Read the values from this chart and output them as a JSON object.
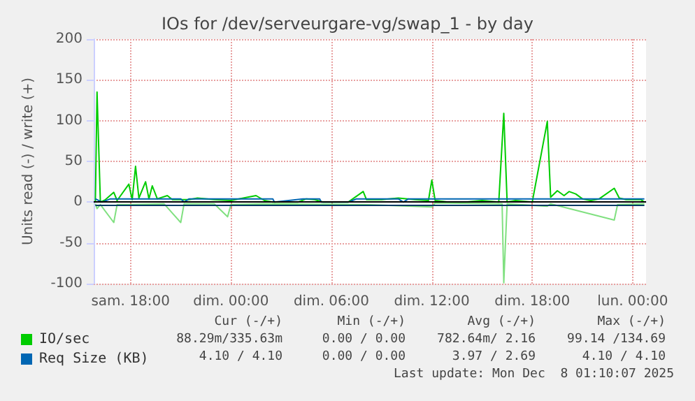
{
  "chart_data": {
    "type": "line",
    "title": "IOs for /dev/serveurgare-vg/swap_1 - by day",
    "ylabel": "Units read (-) / write (+)",
    "xlim": [
      "2025-12-06T15:48",
      "2025-12-08T00:48"
    ],
    "xticks": [
      {
        "value": "2025-12-06T18:00",
        "label": "sam. 18:00"
      },
      {
        "value": "2025-12-07T00:00",
        "label": "dim. 00:00"
      },
      {
        "value": "2025-12-07T06:00",
        "label": "dim. 06:00"
      },
      {
        "value": "2025-12-07T12:00",
        "label": "dim. 12:00"
      },
      {
        "value": "2025-12-07T18:00",
        "label": "dim. 18:00"
      },
      {
        "value": "2025-12-08T00:00",
        "label": "lun. 00:00"
      }
    ],
    "ylim": [
      -100,
      200
    ],
    "yticks": [
      -100,
      -50,
      0,
      50,
      100,
      150,
      200
    ],
    "grid": true,
    "legend": "bottom left",
    "marker": "none",
    "line_style": "solid",
    "ref_lines": [
      {
        "axis": "y",
        "value": 0,
        "color": "#000000"
      }
    ],
    "series": [
      {
        "name": "IO/sec",
        "color": "#00cc00",
        "x": [
          "2025-12-06T15:54",
          "2025-12-06T16:00",
          "2025-12-06T16:12",
          "2025-12-06T16:30",
          "2025-12-06T17:00",
          "2025-12-06T17:12",
          "2025-12-06T17:54",
          "2025-12-06T18:06",
          "2025-12-06T18:18",
          "2025-12-06T18:30",
          "2025-12-06T18:54",
          "2025-12-06T19:06",
          "2025-12-06T19:18",
          "2025-12-06T19:36",
          "2025-12-06T20:12",
          "2025-12-06T20:30",
          "2025-12-06T21:30",
          "2025-12-06T22:00",
          "2025-12-06T23:00",
          "2025-12-07T00:00",
          "2025-12-07T01:00",
          "2025-12-07T01:30",
          "2025-12-07T02:00",
          "2025-12-07T02:30",
          "2025-12-07T04:00",
          "2025-12-07T04:30",
          "2025-12-07T05:00",
          "2025-12-07T05:30",
          "2025-12-07T07:00",
          "2025-12-07T07:54",
          "2025-12-07T08:06",
          "2025-12-07T09:00",
          "2025-12-07T10:00",
          "2025-12-07T11:00",
          "2025-12-07T11:48",
          "2025-12-07T12:00",
          "2025-12-07T12:12",
          "2025-12-07T13:00",
          "2025-12-07T14:00",
          "2025-12-07T15:00",
          "2025-12-07T16:00",
          "2025-12-07T16:18",
          "2025-12-07T16:30",
          "2025-12-07T17:00",
          "2025-12-07T18:00",
          "2025-12-07T18:54",
          "2025-12-07T19:06",
          "2025-12-07T19:30",
          "2025-12-07T19:54",
          "2025-12-07T20:12",
          "2025-12-07T20:36",
          "2025-12-07T21:00",
          "2025-12-07T21:30",
          "2025-12-07T22:00",
          "2025-12-07T22:54",
          "2025-12-07T23:12",
          "2025-12-07T23:36",
          "2025-12-08T00:00",
          "2025-12-08T00:30",
          "2025-12-08T00:42"
        ],
        "values": [
          0,
          135,
          0,
          3,
          12,
          2,
          22,
          3,
          44,
          5,
          25,
          4,
          20,
          4,
          8,
          3,
          3,
          5,
          3,
          2,
          6,
          8,
          2,
          0,
          0,
          4,
          3,
          0,
          0,
          13,
          3,
          3,
          5,
          3,
          2,
          27,
          2,
          0,
          0,
          2,
          0,
          109,
          0,
          2,
          0,
          99,
          6,
          14,
          8,
          13,
          10,
          4,
          2,
          4,
          17,
          5,
          3,
          null,
          3,
          0
        ]
      },
      {
        "color": "#80e080",
        "x": [
          "2025-12-06T15:54",
          "2025-12-06T16:00",
          "2025-12-06T16:12",
          "2025-12-06T17:00",
          "2025-12-06T17:12",
          "2025-12-06T18:00",
          "2025-12-06T20:00",
          "2025-12-06T21:00",
          "2025-12-06T21:12",
          "2025-12-06T23:00",
          "2025-12-06T23:48",
          "2025-12-07T00:00",
          "2025-12-07T02:00",
          "2025-12-07T08:00",
          "2025-12-07T12:00",
          "2025-12-07T12:12",
          "2025-12-07T16:12",
          "2025-12-07T16:18",
          "2025-12-07T16:30",
          "2025-12-07T18:54",
          "2025-12-07T19:06",
          "2025-12-07T22:54",
          "2025-12-07T23:06",
          "2025-12-08T00:42"
        ],
        "values": [
          -2,
          -8,
          -3,
          -25,
          -3,
          -3,
          -2,
          -25,
          -2,
          -2,
          -18,
          -3,
          -2,
          -3,
          -6,
          -1,
          -2,
          -99,
          -2,
          -5,
          -2,
          -22,
          -3,
          -2
        ]
      },
      {
        "name": "Req Size (KB)",
        "color": "#0066b3",
        "x": [
          "2025-12-06T15:54",
          "2025-12-06T16:18",
          "2025-12-06T16:48",
          "2025-12-06T21:00",
          "2025-12-06T21:12",
          "2025-12-06T21:30",
          "2025-12-07T02:30",
          "2025-12-07T02:36",
          "2025-12-07T04:18",
          "2025-12-07T05:18",
          "2025-12-07T05:24",
          "2025-12-07T07:00",
          "2025-12-07T07:30",
          "2025-12-07T10:00",
          "2025-12-07T10:18",
          "2025-12-07T10:36",
          "2025-12-08T00:42"
        ],
        "values": [
          4,
          0,
          4,
          4,
          0,
          4,
          4,
          0,
          4,
          4,
          0,
          0,
          4,
          4,
          0,
          4,
          4
        ]
      },
      {
        "color": "#003a66",
        "x": [
          "2025-12-06T15:54",
          "2025-12-08T00:42"
        ],
        "values": [
          -4,
          -4
        ]
      }
    ],
    "annotations": [
      "Cur (-/+)",
      "Min (-/+)",
      "Avg (-/+)",
      "Max (-/+)",
      "88.29m/335.63m",
      "0.00 / 0.00",
      "782.64m/ 2.16",
      "99.14 /134.69",
      "4.10 / 4.10",
      "0.00 / 0.00",
      "3.97 / 2.69",
      "4.10 / 4.10",
      "Last update: Mon Dec  8 01:10:07 2025"
    ]
  }
}
